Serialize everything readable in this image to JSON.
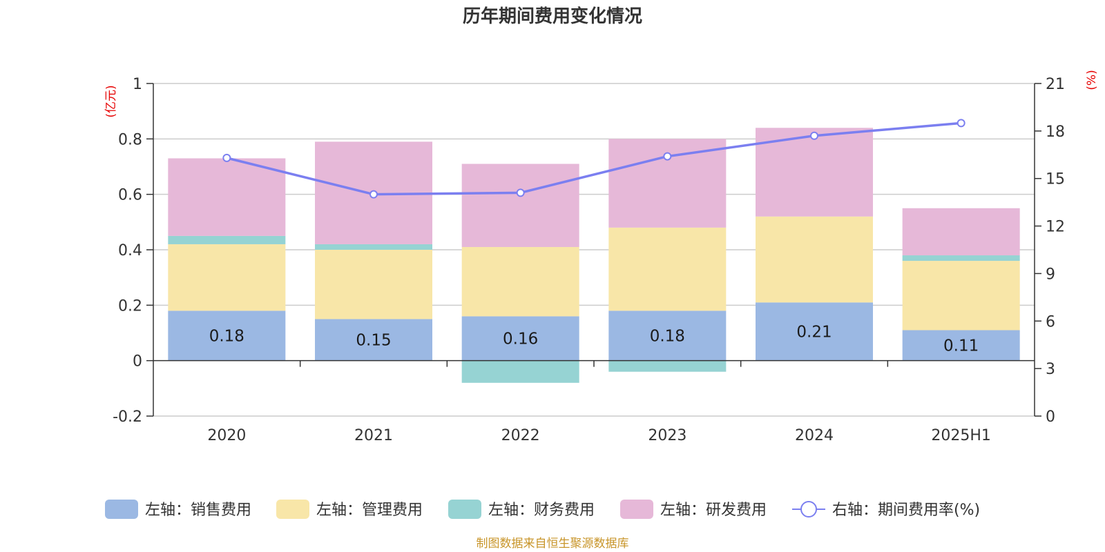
{
  "chart_data": {
    "type": "bar",
    "title": "历年期间费用变化情况",
    "categories": [
      "2020",
      "2021",
      "2022",
      "2023",
      "2024",
      "2025H1"
    ],
    "left_axis": {
      "unit": "(亿元)",
      "ylim": [
        -0.2,
        1
      ],
      "ticks": [
        "-0.2",
        "0",
        "0.2",
        "0.4",
        "0.6",
        "0.8",
        "1"
      ]
    },
    "right_axis": {
      "unit": "(%)",
      "ylim": [
        0,
        21
      ],
      "ticks": [
        "0",
        "3",
        "6",
        "9",
        "12",
        "15",
        "18",
        "21"
      ]
    },
    "series": [
      {
        "name": "左轴：销售费用",
        "type": "bar",
        "axis": "left",
        "color": "#9bb8e3",
        "values": [
          0.18,
          0.15,
          0.16,
          0.18,
          0.21,
          0.11
        ],
        "labels": [
          "0.18",
          "0.15",
          "0.16",
          "0.18",
          "0.21",
          "0.11"
        ]
      },
      {
        "name": "左轴：管理费用",
        "type": "bar",
        "axis": "left",
        "color": "#f8e6a8",
        "values": [
          0.24,
          0.25,
          0.25,
          0.3,
          0.31,
          0.25
        ]
      },
      {
        "name": "左轴：财务费用",
        "type": "bar",
        "axis": "left",
        "color": "#96d3d3",
        "values": [
          0.03,
          0.02,
          -0.08,
          -0.04,
          0.0,
          0.02
        ]
      },
      {
        "name": "左轴：研发费用",
        "type": "bar",
        "axis": "left",
        "color": "#e6b8d8",
        "values": [
          0.28,
          0.37,
          0.3,
          0.32,
          0.32,
          0.17
        ]
      },
      {
        "name": "右轴：期间费用率(%)",
        "type": "line",
        "axis": "right",
        "color": "#7b7ff0",
        "values": [
          16.3,
          14.0,
          14.1,
          16.4,
          17.7,
          18.5
        ]
      }
    ],
    "grid": true,
    "legend_position": "bottom"
  },
  "source": "制图数据来自恒生聚源数据库"
}
